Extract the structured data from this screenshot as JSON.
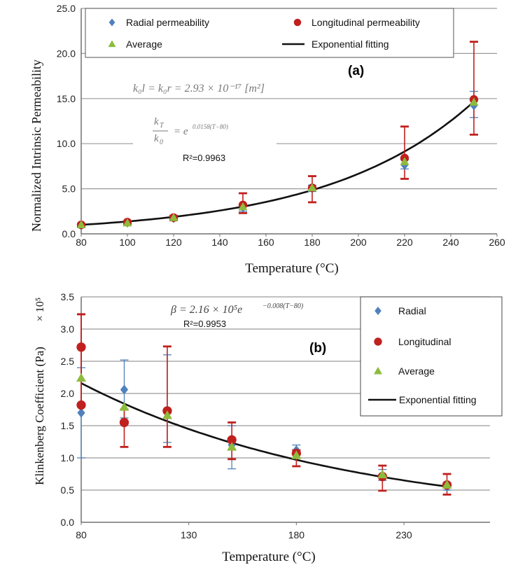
{
  "colors": {
    "radial": "#4f81bd",
    "longitudinal": "#c0201e",
    "average": "#8dbb3d",
    "fit": "#111111",
    "grid": "#9a9a9a",
    "axis": "#707070",
    "equation": "#777777"
  },
  "chart_data": [
    {
      "type": "scatter",
      "panel_label": "(a)",
      "xlabel": "Temperature (°C)",
      "ylabel": "Normalized Intrinsic Permeability",
      "xlim": [
        80,
        260
      ],
      "ylim": [
        0,
        25
      ],
      "xticks": [
        "80",
        "100",
        "120",
        "140",
        "160",
        "180",
        "200",
        "220",
        "240",
        "260"
      ],
      "yticks": [
        "0.0",
        "5.0",
        "10.0",
        "15.0",
        "20.0",
        "25.0"
      ],
      "grid": "horizontal",
      "legend_position": "top",
      "legend": [
        "Radial permeability",
        "Longitudinal permeability",
        "Average",
        "Exponential fitting"
      ],
      "series": [
        {
          "name": "Radial permeability",
          "marker": "diamond",
          "x": [
            80,
            100,
            120,
            150,
            180,
            220,
            250
          ],
          "y": [
            0.9,
            1.2,
            1.7,
            2.9,
            5.0,
            7.6,
            14.2
          ],
          "err_low": [
            0.8,
            1.1,
            1.5,
            2.5,
            4.7,
            7.2,
            12.9
          ],
          "err_high": [
            1.0,
            1.3,
            1.9,
            3.2,
            5.4,
            8.2,
            15.8
          ]
        },
        {
          "name": "Longitudinal permeability",
          "marker": "circle",
          "x": [
            80,
            100,
            120,
            150,
            180,
            220,
            250
          ],
          "y": [
            1.0,
            1.3,
            1.8,
            3.2,
            5.1,
            8.4,
            14.9
          ],
          "err_low": [
            0.8,
            1.1,
            1.5,
            2.3,
            3.5,
            6.1,
            11.0
          ],
          "err_high": [
            1.1,
            1.4,
            2.0,
            4.5,
            6.4,
            11.9,
            21.3
          ]
        },
        {
          "name": "Average",
          "marker": "triangle",
          "x": [
            80,
            100,
            120,
            150,
            180,
            220,
            250
          ],
          "y": [
            1.0,
            1.2,
            1.8,
            3.0,
            5.1,
            8.0,
            14.6
          ]
        }
      ],
      "fit": {
        "name": "Exponential fitting",
        "a": 1,
        "b": 0.0158,
        "x0": 80
      },
      "annotations": {
        "eq1": "k₀l = k₀r = 2.93 × 10⁻¹⁷ [m²]",
        "eq2_lhs_num": "k",
        "eq2_lhs_num_sub": "T",
        "eq2_lhs_den": "k",
        "eq2_lhs_den_sub": "0",
        "eq2_rhs": "= e",
        "eq2_exp": "0.0158(T−80)",
        "r2": "R²=0.9963"
      }
    },
    {
      "type": "scatter",
      "panel_label": "(b)",
      "xlabel": "Temperature (°C)",
      "ylabel": "Klinkenberg Coefficient (Pa)",
      "ylabel_factor": "× 10⁵",
      "xlim": [
        80,
        270
      ],
      "ylim": [
        0,
        3.5
      ],
      "xticks": [
        "80",
        "130",
        "180",
        "230"
      ],
      "yticks": [
        "0.0",
        "0.5",
        "1.0",
        "1.5",
        "2.0",
        "2.5",
        "3.0",
        "3.5"
      ],
      "grid": "horizontal",
      "legend_position": "right",
      "legend": [
        "Radial",
        "Longitudinal",
        "Average",
        "Exponential fitting"
      ],
      "series": [
        {
          "name": "Radial",
          "marker": "diamond",
          "x": [
            80,
            100,
            120,
            150,
            180,
            220,
            250
          ],
          "y": [
            1.7,
            2.06,
            1.74,
            1.2,
            1.12,
            0.73,
            0.55
          ],
          "err_low": [
            1.0,
            1.62,
            1.24,
            0.83,
            1.0,
            0.65,
            0.5
          ],
          "err_high": [
            2.4,
            2.52,
            2.6,
            1.5,
            1.2,
            0.82,
            0.62
          ]
        },
        {
          "name": "Longitudinal",
          "marker": "circle",
          "x": [
            80,
            80,
            100,
            120,
            150,
            180,
            220,
            250
          ],
          "y": [
            2.72,
            1.82,
            1.55,
            1.73,
            1.28,
            1.07,
            0.71,
            0.58
          ],
          "err_low": [
            1.82,
            1.82,
            1.17,
            1.17,
            0.98,
            0.87,
            0.49,
            0.43
          ],
          "err_high": [
            3.23,
            3.23,
            1.75,
            2.73,
            1.55,
            1.12,
            0.88,
            0.75
          ]
        },
        {
          "name": "Average",
          "marker": "triangle",
          "x": [
            80,
            100,
            120,
            150,
            180,
            220,
            250
          ],
          "y": [
            2.24,
            1.79,
            1.66,
            1.17,
            1.04,
            0.74,
            0.58
          ]
        }
      ],
      "fit": {
        "name": "Exponential fitting",
        "a": 2.16,
        "b": -0.008,
        "x0": 80
      },
      "annotations": {
        "eq1": "β = 2.16 × 10⁵e",
        "eq1_exp": "−0.008(T−80)",
        "r2": "R²=0.9953"
      }
    }
  ]
}
